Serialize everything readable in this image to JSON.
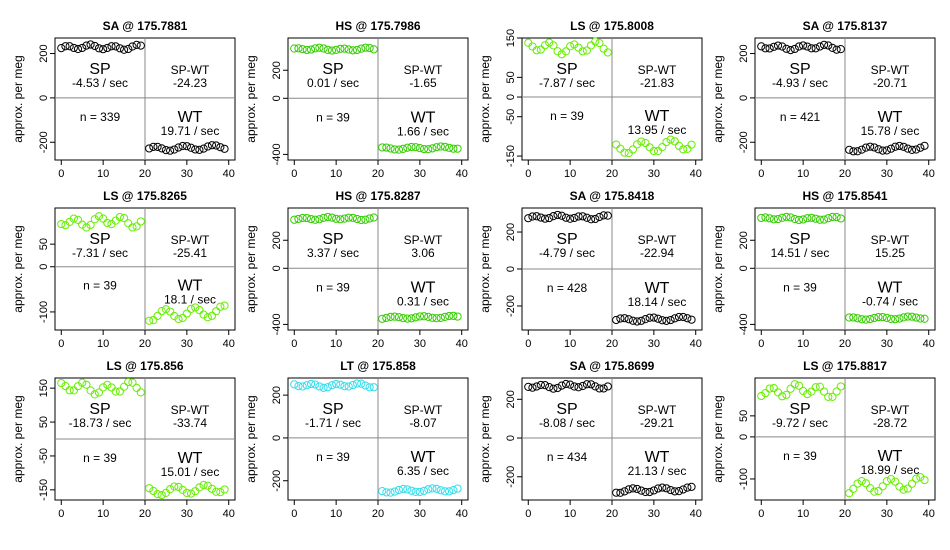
{
  "figure": {
    "ylabel": "approx. per meg",
    "x_ticks": [
      0,
      10,
      20,
      30,
      40
    ]
  },
  "chart_data": [
    {
      "type": "scatter",
      "title": "SA @ 175.7881",
      "color": "#000000",
      "ylim": [
        -280,
        270
      ],
      "yticks": [
        200,
        0,
        -200
      ],
      "sp": {
        "label": "SP",
        "rate": "-4.53 / sec",
        "level": 228,
        "amp": 9
      },
      "wt": {
        "label": "WT",
        "rate": "19.71 / sec",
        "level": -226,
        "amp": 10
      },
      "diff": {
        "label": "SP-WT",
        "value": "-24.23"
      },
      "n": "n = 339"
    },
    {
      "type": "scatter",
      "title": "HS @ 175.7986",
      "color": "#33cc00",
      "ylim": [
        -440,
        430
      ],
      "yticks": [
        200,
        0,
        -400
      ],
      "sp": {
        "label": "SP",
        "rate": "0.01 / sec",
        "level": 350,
        "amp": 8
      },
      "wt": {
        "label": "WT",
        "rate": "1.66 / sec",
        "level": -355,
        "amp": 9
      },
      "diff": {
        "label": "SP-WT",
        "value": "-1.65"
      },
      "n": "n = 39"
    },
    {
      "type": "scatter",
      "title": "LS @ 175.8008",
      "color": "#66ee00",
      "ylim": [
        -160,
        150
      ],
      "yticks": [
        150,
        50,
        0,
        -50,
        -150
      ],
      "sp": {
        "label": "SP",
        "rate": "-7.87 / sec",
        "level": 125,
        "amp": 12
      },
      "wt": {
        "label": "WT",
        "rate": "13.95 / sec",
        "level": -125,
        "amp": 14
      },
      "diff": {
        "label": "SP-WT",
        "value": "-21.83"
      },
      "n": "n = 39"
    },
    {
      "type": "scatter",
      "title": "SA @ 175.8137",
      "color": "#000000",
      "ylim": [
        -280,
        270
      ],
      "yticks": [
        200,
        0,
        -200
      ],
      "sp": {
        "label": "SP",
        "rate": "-4.93 / sec",
        "level": 228,
        "amp": 9
      },
      "wt": {
        "label": "WT",
        "rate": "15.78 / sec",
        "level": -228,
        "amp": 10
      },
      "diff": {
        "label": "SP-WT",
        "value": "-20.71"
      },
      "n": "n = 421"
    },
    {
      "type": "scatter",
      "title": "LS @ 175.8265",
      "color": "#66ee00",
      "ylim": [
        -140,
        130
      ],
      "yticks": [
        50,
        0,
        -100
      ],
      "sp": {
        "label": "SP",
        "rate": "-7.31 / sec",
        "level": 100,
        "amp": 10
      },
      "wt": {
        "label": "WT",
        "rate": "18.1 / sec",
        "level": -103,
        "amp": 12
      },
      "diff": {
        "label": "SP-WT",
        "value": "-25.41"
      },
      "n": "n = 39"
    },
    {
      "type": "scatter",
      "title": "HS @ 175.8287",
      "color": "#33cc00",
      "ylim": [
        -440,
        430
      ],
      "yticks": [
        200,
        0,
        -400
      ],
      "sp": {
        "label": "SP",
        "rate": "3.37 / sec",
        "level": 355,
        "amp": 8
      },
      "wt": {
        "label": "WT",
        "rate": "0.31 / sec",
        "level": -350,
        "amp": 8
      },
      "diff": {
        "label": "SP-WT",
        "value": "3.06"
      },
      "n": "n = 39"
    },
    {
      "type": "scatter",
      "title": "SA @ 175.8418",
      "color": "#000000",
      "ylim": [
        -330,
        330
      ],
      "yticks": [
        200,
        0,
        -200
      ],
      "sp": {
        "label": "SP",
        "rate": "-4.79 / sec",
        "level": 280,
        "amp": 9
      },
      "wt": {
        "label": "WT",
        "rate": "18.14 / sec",
        "level": -272,
        "amp": 10
      },
      "diff": {
        "label": "SP-WT",
        "value": "-22.94"
      },
      "n": "n = 428"
    },
    {
      "type": "scatter",
      "title": "HS @ 175.8541",
      "color": "#33cc00",
      "ylim": [
        -440,
        430
      ],
      "yticks": [
        200,
        0,
        -400
      ],
      "sp": {
        "label": "SP",
        "rate": "14.51 / sec",
        "level": 355,
        "amp": 9
      },
      "wt": {
        "label": "WT",
        "rate": "-0.74 / sec",
        "level": -355,
        "amp": 9
      },
      "diff": {
        "label": "SP-WT",
        "value": "15.25"
      },
      "n": "n = 39"
    },
    {
      "type": "scatter",
      "title": "LS @ 175.856",
      "color": "#66ee00",
      "ylim": [
        -180,
        180
      ],
      "yticks": [
        150,
        50,
        -50,
        -150
      ],
      "sp": {
        "label": "SP",
        "rate": "-18.73 / sec",
        "level": 150,
        "amp": 14
      },
      "wt": {
        "label": "WT",
        "rate": "15.01 / sec",
        "level": -150,
        "amp": 12
      },
      "diff": {
        "label": "SP-WT",
        "value": "-33.74"
      },
      "n": "n = 39"
    },
    {
      "type": "scatter",
      "title": "LT @ 175.858",
      "color": "#33ddee",
      "ylim": [
        -290,
        280
      ],
      "yticks": [
        200,
        0,
        -200
      ],
      "sp": {
        "label": "SP",
        "rate": "-1.71 / sec",
        "level": 245,
        "amp": 8
      },
      "wt": {
        "label": "WT",
        "rate": "6.35 / sec",
        "level": -245,
        "amp": 8
      },
      "diff": {
        "label": "SP-WT",
        "value": "-8.07"
      },
      "n": "n = 39"
    },
    {
      "type": "scatter",
      "title": "SA @ 175.8699",
      "color": "#000000",
      "ylim": [
        -320,
        310
      ],
      "yticks": [
        200,
        0,
        -200
      ],
      "sp": {
        "label": "SP",
        "rate": "-8.08 / sec",
        "level": 268,
        "amp": 10
      },
      "wt": {
        "label": "WT",
        "rate": "21.13 / sec",
        "level": -268,
        "amp": 11
      },
      "diff": {
        "label": "SP-WT",
        "value": "-29.21"
      },
      "n": "n = 434"
    },
    {
      "type": "scatter",
      "title": "LS @ 175.8817",
      "color": "#66ee00",
      "ylim": [
        -150,
        140
      ],
      "yticks": [
        50,
        0,
        -100
      ],
      "sp": {
        "label": "SP",
        "rate": "-9.72 / sec",
        "level": 110,
        "amp": 12
      },
      "wt": {
        "label": "WT",
        "rate": "18.99 / sec",
        "level": -115,
        "amp": 14
      },
      "diff": {
        "label": "SP-WT",
        "value": "-28.72"
      },
      "n": "n = 39"
    }
  ]
}
